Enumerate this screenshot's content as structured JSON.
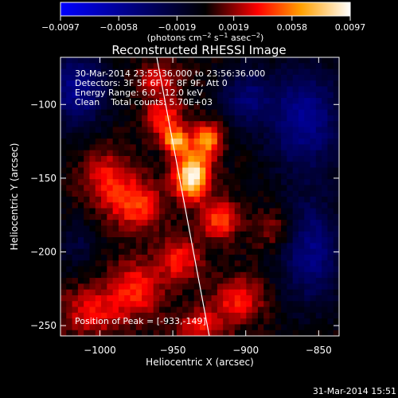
{
  "chart_data": {
    "type": "heatmap",
    "title": "Reconstructed RHESSI Image",
    "xlabel": "Heliocentric X (arcsec)",
    "ylabel": "Heliocentric Y (arcsec)",
    "xlim": [
      -1027,
      -836
    ],
    "ylim": [
      -257,
      -68
    ],
    "xticks": [
      -1000,
      -950,
      -900,
      -850
    ],
    "xtick_labels": [
      "−1000",
      "−950",
      "−900",
      "−850"
    ],
    "yticks": [
      -100,
      -150,
      -200,
      -250
    ],
    "ytick_labels": [
      "−100",
      "−150",
      "−200",
      "−250"
    ],
    "colorbar": {
      "range": [
        -0.0097,
        0.0097
      ],
      "ticks": [
        -0.0097,
        -0.0058,
        -0.0019,
        0.0019,
        0.0058,
        0.0097
      ],
      "tick_labels": [
        "−0.0097",
        "−0.0058",
        "−0.0019",
        "0.0019",
        "0.0058",
        "0.0097"
      ],
      "unit_label_parts": [
        "(photons cm",
        "−2",
        " s",
        "−1",
        " asec",
        "−2",
        ")"
      ]
    },
    "annotations": [
      "30-Mar-2014 23:55:36.000 to 23:56:36.000",
      "Detectors: 3F 5F 6F 7F 8F 9F, Att 0",
      "Energy Range: 6.0 - 12.0 keV",
      "Clean    Total counts: 5.70E+03"
    ],
    "peak_label": "Position of Peak = [-933,-149]",
    "peak": [
      -933,
      -149
    ],
    "limb_line": [
      [
        -961,
        -68
      ],
      [
        -925,
        -257
      ]
    ],
    "timestamp": "31-Mar-2014 15:51",
    "colormap": [
      "#0000ff",
      "#000000",
      "#ff0000",
      "#ffa000",
      "#ffffff"
    ],
    "sources": [
      {
        "x": -937,
        "y": -148,
        "amp": 1.0,
        "sx": 8,
        "sy": 11
      },
      {
        "x": -926,
        "y": -124,
        "amp": 0.62,
        "sx": 7,
        "sy": 8
      },
      {
        "x": -956,
        "y": -108,
        "amp": 0.45,
        "sx": 9,
        "sy": 9
      },
      {
        "x": -918,
        "y": -178,
        "amp": 0.5,
        "sx": 9,
        "sy": 9
      },
      {
        "x": -975,
        "y": -168,
        "amp": 0.45,
        "sx": 12,
        "sy": 12
      },
      {
        "x": -945,
        "y": -205,
        "amp": 0.4,
        "sx": 10,
        "sy": 10
      },
      {
        "x": -975,
        "y": -225,
        "amp": 0.4,
        "sx": 13,
        "sy": 13
      },
      {
        "x": -1005,
        "y": -240,
        "amp": 0.35,
        "sx": 15,
        "sy": 12
      },
      {
        "x": -995,
        "y": -150,
        "amp": 0.35,
        "sx": 12,
        "sy": 14
      },
      {
        "x": -948,
        "y": -125,
        "amp": 0.7,
        "sx": 6,
        "sy": 6
      },
      {
        "x": -960,
        "y": -82,
        "amp": 0.35,
        "sx": 10,
        "sy": 7
      },
      {
        "x": -905,
        "y": -232,
        "amp": 0.4,
        "sx": 12,
        "sy": 10
      },
      {
        "x": -930,
        "y": -250,
        "amp": 0.35,
        "sx": 12,
        "sy": 8
      },
      {
        "x": -880,
        "y": -185,
        "amp": 0.25,
        "sx": 10,
        "sy": 10
      }
    ],
    "negative_regions": [
      {
        "x": -1015,
        "y": -90,
        "amp": -0.55,
        "sx": 14,
        "sy": 18
      },
      {
        "x": -860,
        "y": -110,
        "amp": -0.55,
        "sx": 18,
        "sy": 25
      },
      {
        "x": -855,
        "y": -200,
        "amp": -0.5,
        "sx": 15,
        "sy": 25
      },
      {
        "x": -900,
        "y": -95,
        "amp": -0.4,
        "sx": 12,
        "sy": 14
      },
      {
        "x": -1015,
        "y": -195,
        "amp": -0.2,
        "sx": 10,
        "sy": 12
      }
    ]
  }
}
